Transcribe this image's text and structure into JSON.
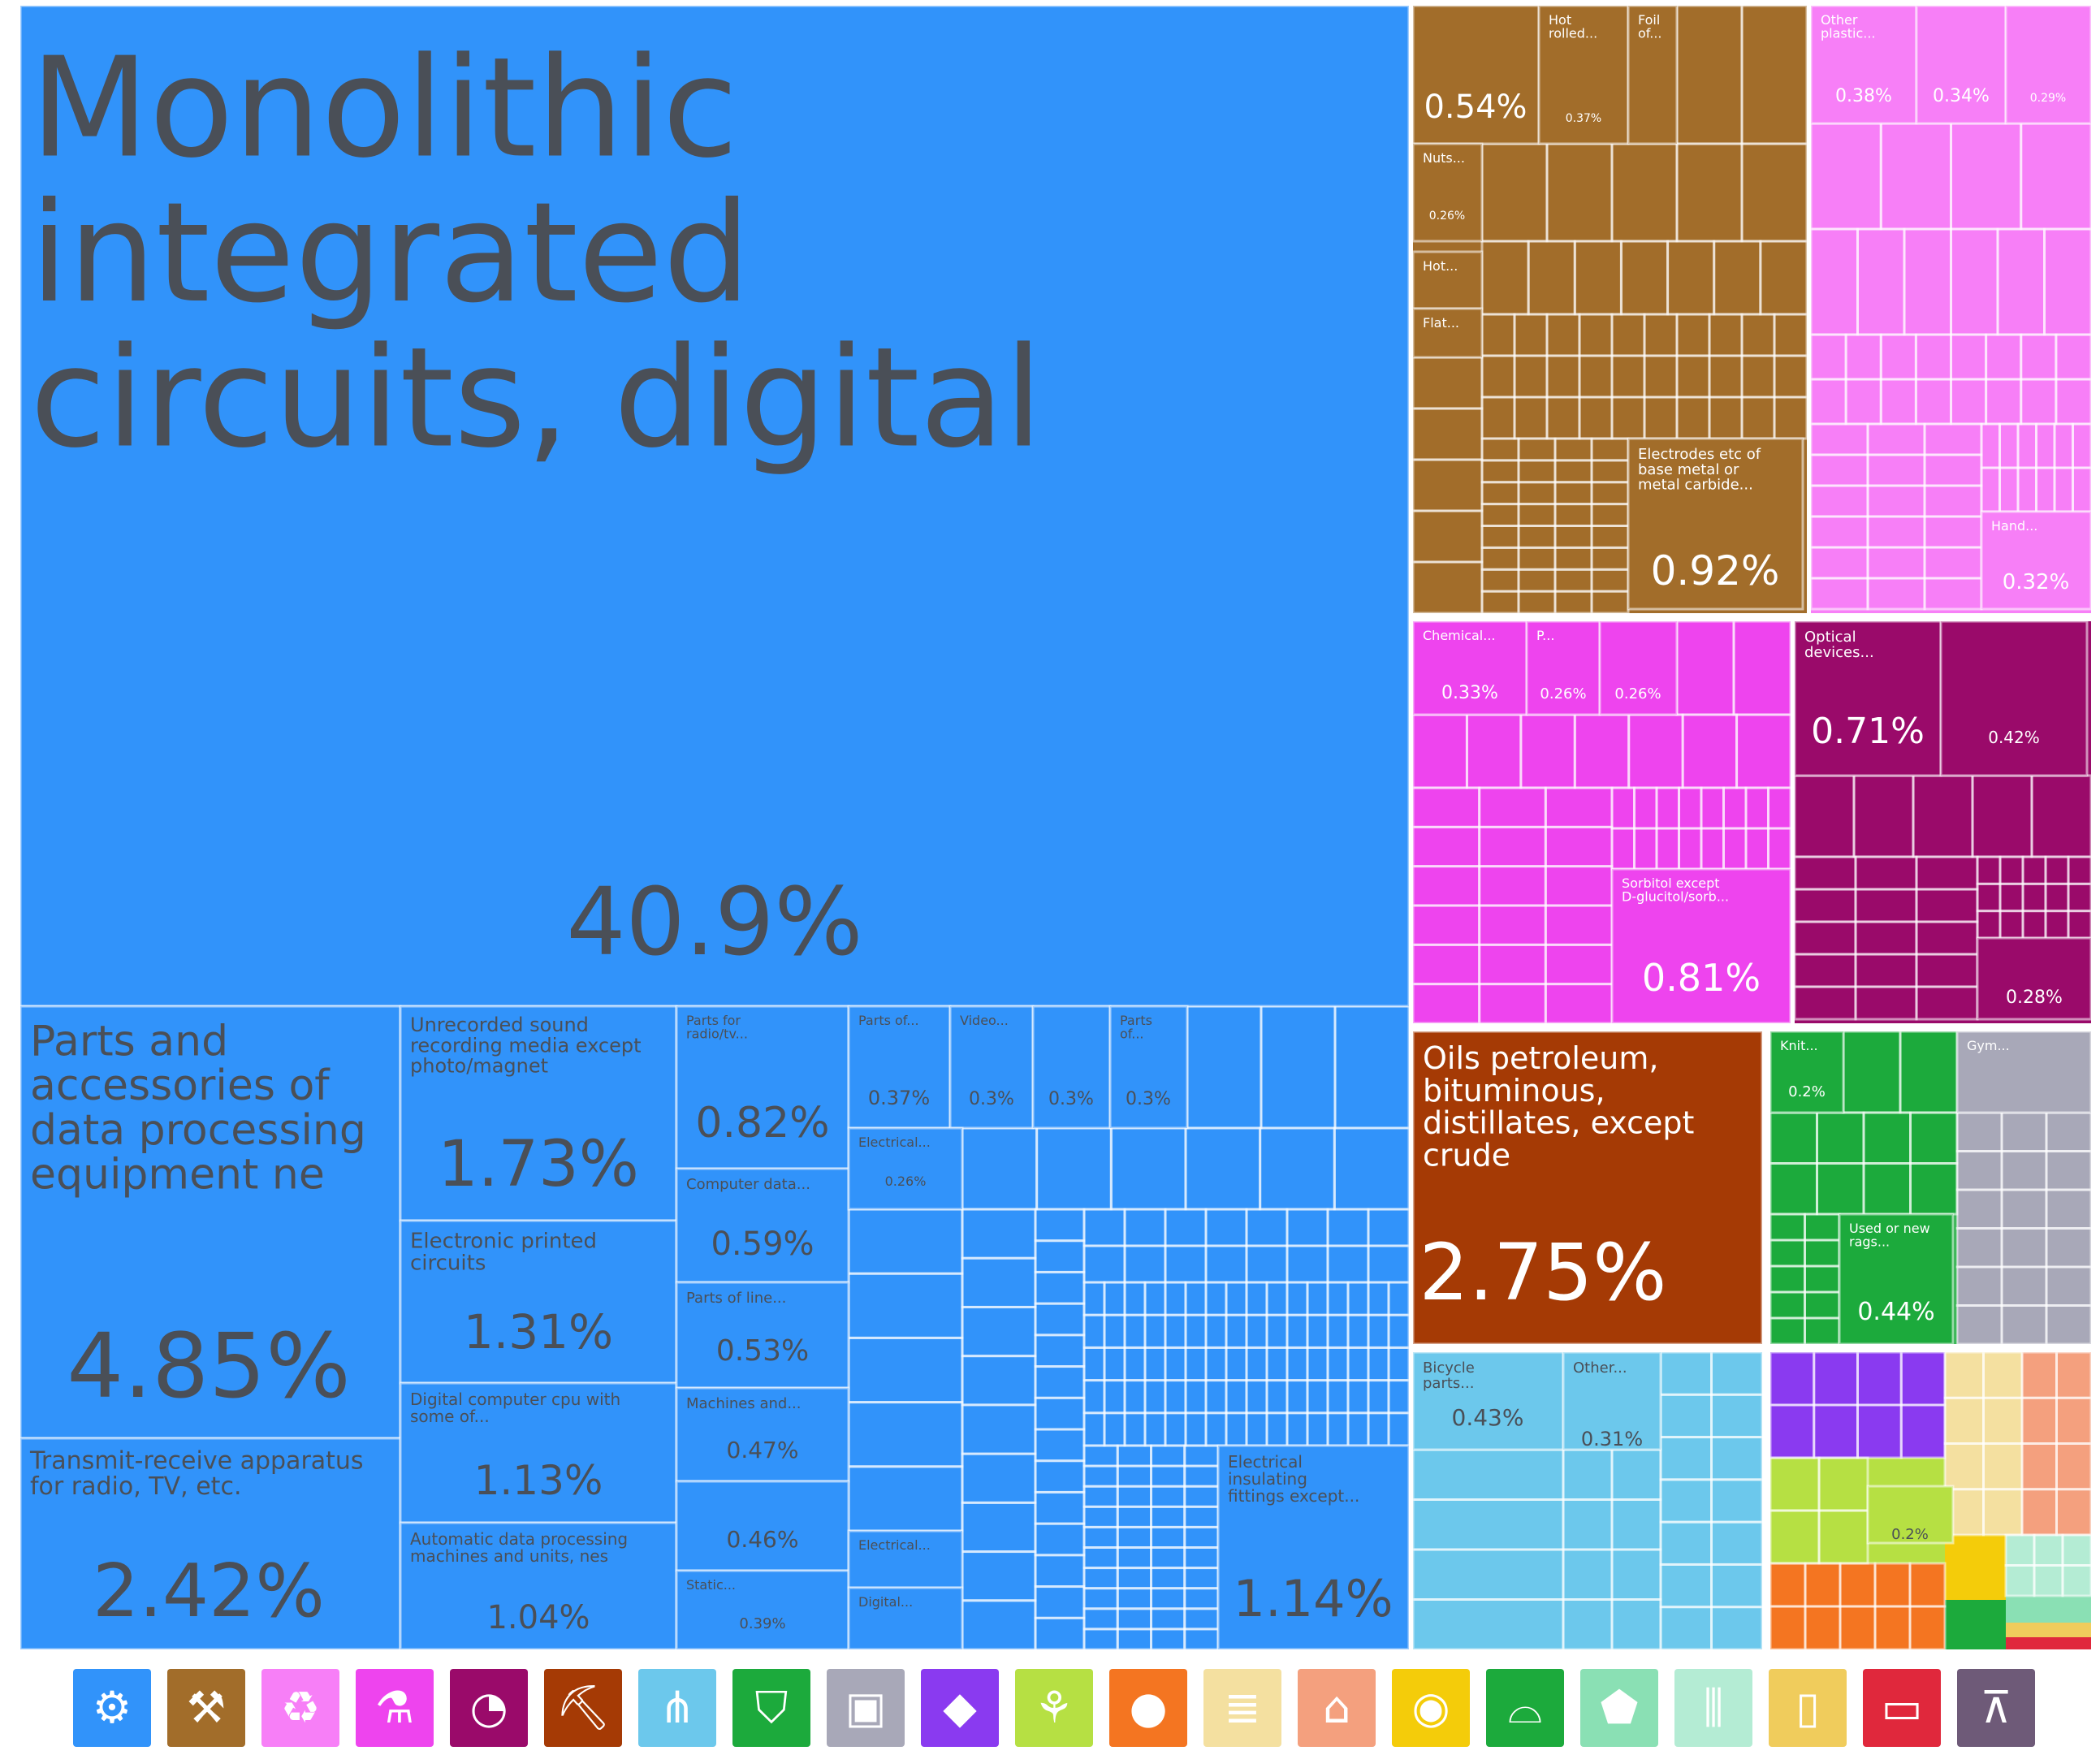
{
  "chart_data": {
    "type": "treemap",
    "title": "",
    "tiles": [
      {
        "label": "Monolithic integrated circuits, digital",
        "value": "40.9%",
        "color": "#3193fa"
      },
      {
        "label": "Parts and accessories of data processing equipment ne",
        "value": "4.85%",
        "color": "#3193fa"
      },
      {
        "label": "Transmit-receive apparatus for radio, TV, etc.",
        "value": "2.42%",
        "color": "#3193fa"
      },
      {
        "label": "Unrecorded sound recording media except photo/magnet",
        "value": "1.73%",
        "color": "#3193fa"
      },
      {
        "label": "Electronic printed circuits",
        "value": "1.31%",
        "color": "#3193fa"
      },
      {
        "label": "Digital computer cpu with some of...",
        "value": "1.13%",
        "color": "#3193fa"
      },
      {
        "label": "Automatic data processing machines and units, nes",
        "value": "1.04%",
        "color": "#3193fa"
      },
      {
        "label": "Parts for radio/tv...",
        "value": "0.82%",
        "color": "#3193fa"
      },
      {
        "label": "Computer data...",
        "value": "0.59%",
        "color": "#3193fa"
      },
      {
        "label": "Parts of line...",
        "value": "0.53%",
        "color": "#3193fa"
      },
      {
        "label": "Machines and...",
        "value": "0.47%",
        "color": "#3193fa"
      },
      {
        "label": "",
        "value": "0.46%",
        "color": "#3193fa"
      },
      {
        "label": "Static...",
        "value": "0.39%",
        "color": "#3193fa"
      },
      {
        "label": "Parts of...",
        "value": "0.37%",
        "color": "#3193fa"
      },
      {
        "label": "Video...",
        "value": "0.3%",
        "color": "#3193fa"
      },
      {
        "label": "",
        "value": "0.3%",
        "color": "#3193fa"
      },
      {
        "label": "Parts of...",
        "value": "0.3%",
        "color": "#3193fa"
      },
      {
        "label": "Electrical...",
        "value": "0.26%",
        "color": "#3193fa"
      },
      {
        "label": "Electrical...",
        "value": "",
        "color": "#3193fa"
      },
      {
        "label": "Digital...",
        "value": "",
        "color": "#3193fa"
      },
      {
        "label": "Electrical insulating fittings except...",
        "value": "1.14%",
        "color": "#3193fa"
      },
      {
        "label": "",
        "value": "0.54%",
        "color": "#a26d2a"
      },
      {
        "label": "Hot rolled...",
        "value": "0.37%",
        "color": "#a26d2a"
      },
      {
        "label": "Foil of...",
        "value": "",
        "color": "#a26d2a"
      },
      {
        "label": "Nuts...",
        "value": "0.26%",
        "color": "#a26d2a"
      },
      {
        "label": "Hot...",
        "value": "",
        "color": "#a26d2a"
      },
      {
        "label": "Flat...",
        "value": "",
        "color": "#a26d2a"
      },
      {
        "label": "Electrodes etc of base metal or metal carbide...",
        "value": "0.92%",
        "color": "#a26d2a"
      },
      {
        "label": "Other plastic...",
        "value": "0.38%",
        "color": "#f77ff7"
      },
      {
        "label": "",
        "value": "0.34%",
        "color": "#f77ff7"
      },
      {
        "label": "",
        "value": "0.29%",
        "color": "#f77ff7"
      },
      {
        "label": "Hand...",
        "value": "0.32%",
        "color": "#f77ff7"
      },
      {
        "label": "Chemical...",
        "value": "0.33%",
        "color": "#ee44ee"
      },
      {
        "label": "P...",
        "value": "0.26%",
        "color": "#ee44ee"
      },
      {
        "label": "",
        "value": "0.26%",
        "color": "#ee44ee"
      },
      {
        "label": "Sorbitol except D-glucitol/sorb...",
        "value": "0.81%",
        "color": "#ee44ee"
      },
      {
        "label": "Optical devices...",
        "value": "0.71%",
        "color": "#9a0a6a"
      },
      {
        "label": "",
        "value": "0.42%",
        "color": "#9a0a6a"
      },
      {
        "label": "",
        "value": "0.28%",
        "color": "#9a0a6a"
      },
      {
        "label": "Oils petroleum, bituminous, distillates, except crude",
        "value": "2.75%",
        "color": "#a53a05"
      },
      {
        "label": "Knit...",
        "value": "0.2%",
        "color": "#1caa3c"
      },
      {
        "label": "Used or new rags...",
        "value": "0.44%",
        "color": "#1caa3c"
      },
      {
        "label": "Gym...",
        "value": "",
        "color": "#a8a8b8"
      },
      {
        "label": "Bicycle parts...",
        "value": "0.43%",
        "color": "#6cc8ec"
      },
      {
        "label": "Other...",
        "value": "0.31%",
        "color": "#6cc8ec"
      },
      {
        "label": "",
        "value": "0.2%",
        "color": "#b6e043"
      }
    ]
  },
  "legend": [
    {
      "icon": "gear-icon",
      "glyph": "⚙",
      "color": "#3193fa"
    },
    {
      "icon": "anvil-icon",
      "glyph": "⚒",
      "color": "#a26d2a"
    },
    {
      "icon": "recycle-icon",
      "glyph": "♻",
      "color": "#f77ff7"
    },
    {
      "icon": "flask-icon",
      "glyph": "⚗",
      "color": "#ee44ee"
    },
    {
      "icon": "gauge-icon",
      "glyph": "◔",
      "color": "#9a0a6a"
    },
    {
      "icon": "pickaxe-icon",
      "glyph": "⛏",
      "color": "#a53a05"
    },
    {
      "icon": "road-icon",
      "glyph": "⋔",
      "color": "#6cc8ec"
    },
    {
      "icon": "shirt-icon",
      "glyph": "⛉",
      "color": "#1caa3c"
    },
    {
      "icon": "box-icon",
      "glyph": "▣",
      "color": "#a8a8b8"
    },
    {
      "icon": "gem-icon",
      "glyph": "◆",
      "color": "#8a3af0"
    },
    {
      "icon": "wheat-icon",
      "glyph": "⚘",
      "color": "#b6e043"
    },
    {
      "icon": "meat-icon",
      "glyph": "●",
      "color": "#f47521"
    },
    {
      "icon": "scroll-icon",
      "glyph": "≣",
      "color": "#f4e0a0"
    },
    {
      "icon": "animal-icon",
      "glyph": "⌂",
      "color": "#f4a07e"
    },
    {
      "icon": "fruit-icon",
      "glyph": "◉",
      "color": "#f4cc0a"
    },
    {
      "icon": "shoe-icon",
      "glyph": "⌓",
      "color": "#1caa3c"
    },
    {
      "icon": "hide-icon",
      "glyph": "⬟",
      "color": "#8ae0b4"
    },
    {
      "icon": "bottles-icon",
      "glyph": "⫼",
      "color": "#b4ecd4"
    },
    {
      "icon": "lamp-icon",
      "glyph": "▯",
      "color": "#f0cc5c"
    },
    {
      "icon": "ticket-icon",
      "glyph": "▭",
      "color": "#e0283c"
    },
    {
      "icon": "easel-icon",
      "glyph": "⊼",
      "color": "#6e5a78"
    }
  ]
}
